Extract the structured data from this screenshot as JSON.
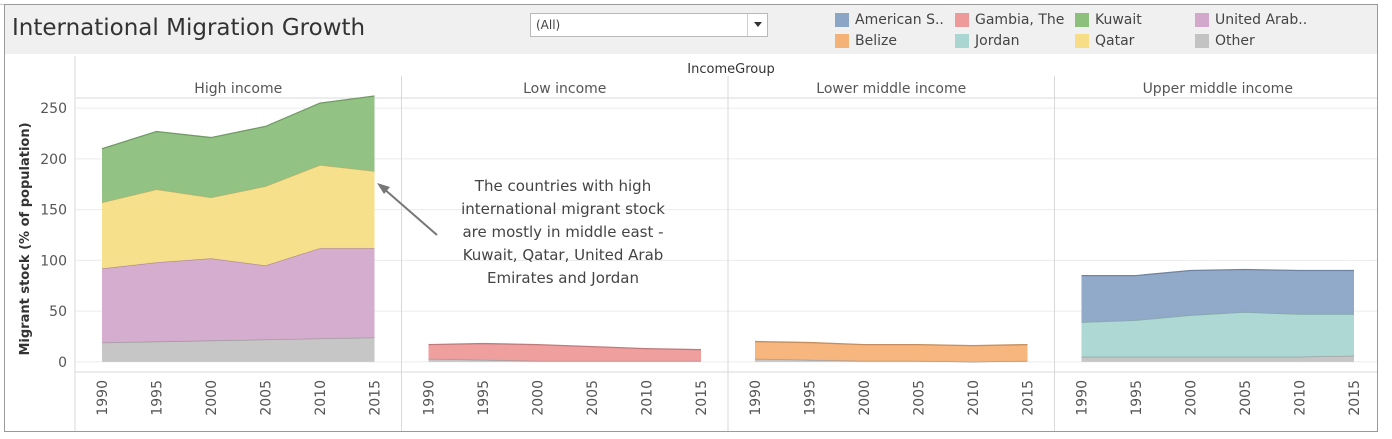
{
  "header": {
    "title": "International Migration Growth",
    "filter": {
      "value": "(All)"
    }
  },
  "legend": {
    "items": [
      {
        "label": "American S..",
        "color": "#8ca5c7"
      },
      {
        "label": "Gambia, The",
        "color": "#ef9a9a"
      },
      {
        "label": "Kuwait",
        "color": "#8dc07d"
      },
      {
        "label": "United Arab..",
        "color": "#d3a9cb"
      },
      {
        "label": "Belize",
        "color": "#f5b276"
      },
      {
        "label": "Jordan",
        "color": "#a9d6d1"
      },
      {
        "label": "Qatar",
        "color": "#f7de86"
      },
      {
        "label": "Other",
        "color": "#c3c3c3"
      }
    ]
  },
  "chart_data": {
    "type": "area",
    "stacked": true,
    "column_header": "IncomeGroup",
    "ylabel": "Migrant stock (% of population)",
    "yticks": [
      0,
      50,
      100,
      150,
      200,
      250
    ],
    "ylim": [
      -10,
      260
    ],
    "x": [
      1990,
      1995,
      2000,
      2005,
      2010,
      2015
    ],
    "grid": true,
    "legend_position": "top-right",
    "annotation": {
      "panel": "High income",
      "lines": [
        "The countries with high",
        "international migrant stock",
        "are mostly in middle east -",
        "Kuwait, Qatar, United Arab",
        "Emirates and Jordan"
      ]
    },
    "panels": [
      {
        "name": "High income",
        "series": [
          {
            "name": "Other",
            "color": "#c3c3c3",
            "values": [
              19,
              20,
              21,
              22,
              23,
              24
            ]
          },
          {
            "name": "United Arab..",
            "color": "#d3a9cb",
            "values": [
              73,
              78,
              81,
              73,
              89,
              88
            ]
          },
          {
            "name": "Qatar",
            "color": "#f7de86",
            "values": [
              65,
              72,
              60,
              78,
              82,
              76
            ]
          },
          {
            "name": "Kuwait",
            "color": "#8dc07d",
            "values": [
              53,
              57,
              59,
              59,
              61,
              74
            ]
          }
        ]
      },
      {
        "name": "Low income",
        "series": [
          {
            "name": "Other",
            "color": "#c3c3c3",
            "values": [
              3,
              2,
              1,
              1,
              1,
              1
            ]
          },
          {
            "name": "Gambia, The",
            "color": "#ef9a9a",
            "values": [
              14,
              16,
              16,
              14,
              12,
              11
            ]
          }
        ]
      },
      {
        "name": "Lower middle income",
        "series": [
          {
            "name": "Other",
            "color": "#c3c3c3",
            "values": [
              3,
              2,
              1,
              1,
              0,
              1
            ]
          },
          {
            "name": "Belize",
            "color": "#f5b276",
            "values": [
              17,
              17,
              16,
              16,
              16,
              16
            ]
          }
        ]
      },
      {
        "name": "Upper middle income",
        "series": [
          {
            "name": "Other",
            "color": "#c3c3c3",
            "values": [
              5,
              5,
              5,
              5,
              5,
              6
            ]
          },
          {
            "name": "Jordan",
            "color": "#a9d6d1",
            "values": [
              34,
              36,
              41,
              44,
              42,
              41
            ]
          },
          {
            "name": "American S..",
            "color": "#8ca5c7",
            "values": [
              46,
              44,
              44,
              42,
              43,
              43
            ]
          }
        ]
      }
    ]
  }
}
